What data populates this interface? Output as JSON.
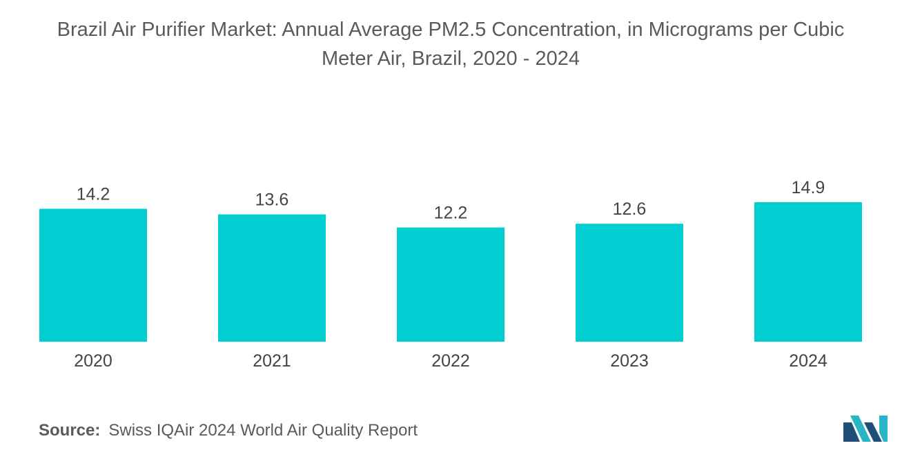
{
  "header": {
    "title_line1": "Brazil Air Purifier Market: Annual Average PM2.5 Concentration, in Micrograms per Cubic",
    "title_line2": "Meter Air, Brazil, 2020 - 2024"
  },
  "chart_data": {
    "type": "bar",
    "title": "Brazil Air Purifier Market: Annual Average PM2.5 Concentration, in Micrograms per Cubic Meter Air, Brazil, 2020 - 2024",
    "categories": [
      "2020",
      "2021",
      "2022",
      "2023",
      "2024"
    ],
    "values": [
      14.2,
      13.6,
      12.2,
      12.6,
      14.9
    ],
    "value_labels": [
      "14.2",
      "13.6",
      "12.2",
      "12.6",
      "14.9"
    ],
    "xlabel": "",
    "ylabel": "",
    "ylim": [
      0,
      14.9
    ],
    "grid": false,
    "legend": "none",
    "bar_color": "#00ced1"
  },
  "footer": {
    "source_label": "Source:",
    "source_text": "Swiss IQAir 2024 World Air Quality Report"
  },
  "logo": {
    "icon": "mordor-logo-icon",
    "colors": [
      "#1f4e79",
      "#29b5c5"
    ]
  }
}
